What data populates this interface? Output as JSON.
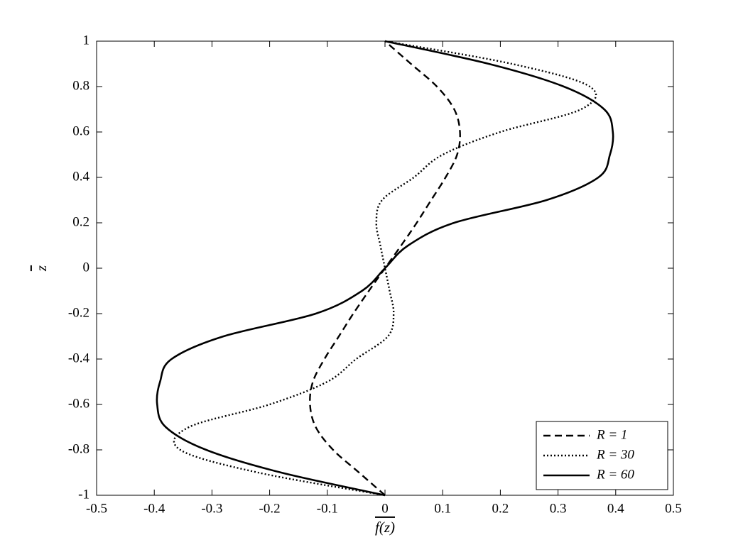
{
  "chart_data": {
    "type": "line",
    "xlabel": "f(z)",
    "ylabel": "z",
    "y": [
      -1,
      -0.9,
      -0.8,
      -0.7,
      -0.6,
      -0.5,
      -0.4,
      -0.3,
      -0.2,
      -0.1,
      0,
      0.1,
      0.2,
      0.3,
      0.4,
      0.5,
      0.6,
      0.7,
      0.8,
      0.9,
      1
    ],
    "series": [
      {
        "name": "R = 1",
        "color": "#000000",
        "style": "dashed",
        "values": [
          0,
          -0.045,
          -0.09,
          -0.12,
          -0.13,
          -0.125,
          -0.105,
          -0.08,
          -0.055,
          -0.028,
          0,
          0.028,
          0.055,
          0.08,
          0.105,
          0.125,
          0.13,
          0.12,
          0.09,
          0.045,
          0
        ]
      },
      {
        "name": "R = 30",
        "color": "#000000",
        "style": "dotted",
        "values": [
          0,
          -0.22,
          -0.355,
          -0.34,
          -0.2,
          -0.1,
          -0.05,
          0.005,
          0.015,
          0.008,
          0,
          -0.008,
          -0.015,
          -0.005,
          0.05,
          0.1,
          0.2,
          0.34,
          0.355,
          0.22,
          0
        ]
      },
      {
        "name": "R = 60",
        "color": "#000000",
        "style": "solid",
        "values": [
          0,
          -0.18,
          -0.31,
          -0.38,
          -0.395,
          -0.39,
          -0.37,
          -0.28,
          -0.12,
          -0.04,
          0,
          0.04,
          0.12,
          0.28,
          0.37,
          0.39,
          0.395,
          0.38,
          0.31,
          0.18,
          0
        ]
      }
    ],
    "xlim": [
      -0.5,
      0.5
    ],
    "xticks": [
      -0.5,
      -0.4,
      -0.3,
      -0.2,
      -0.1,
      0,
      0.1,
      0.2,
      0.3,
      0.4,
      0.5
    ],
    "ylim": [
      -1,
      1
    ],
    "yticks": [
      -1,
      -0.8,
      -0.6,
      -0.4,
      -0.2,
      0,
      0.2,
      0.4,
      0.6,
      0.8,
      1
    ],
    "grid": false,
    "legend": "lower right"
  }
}
